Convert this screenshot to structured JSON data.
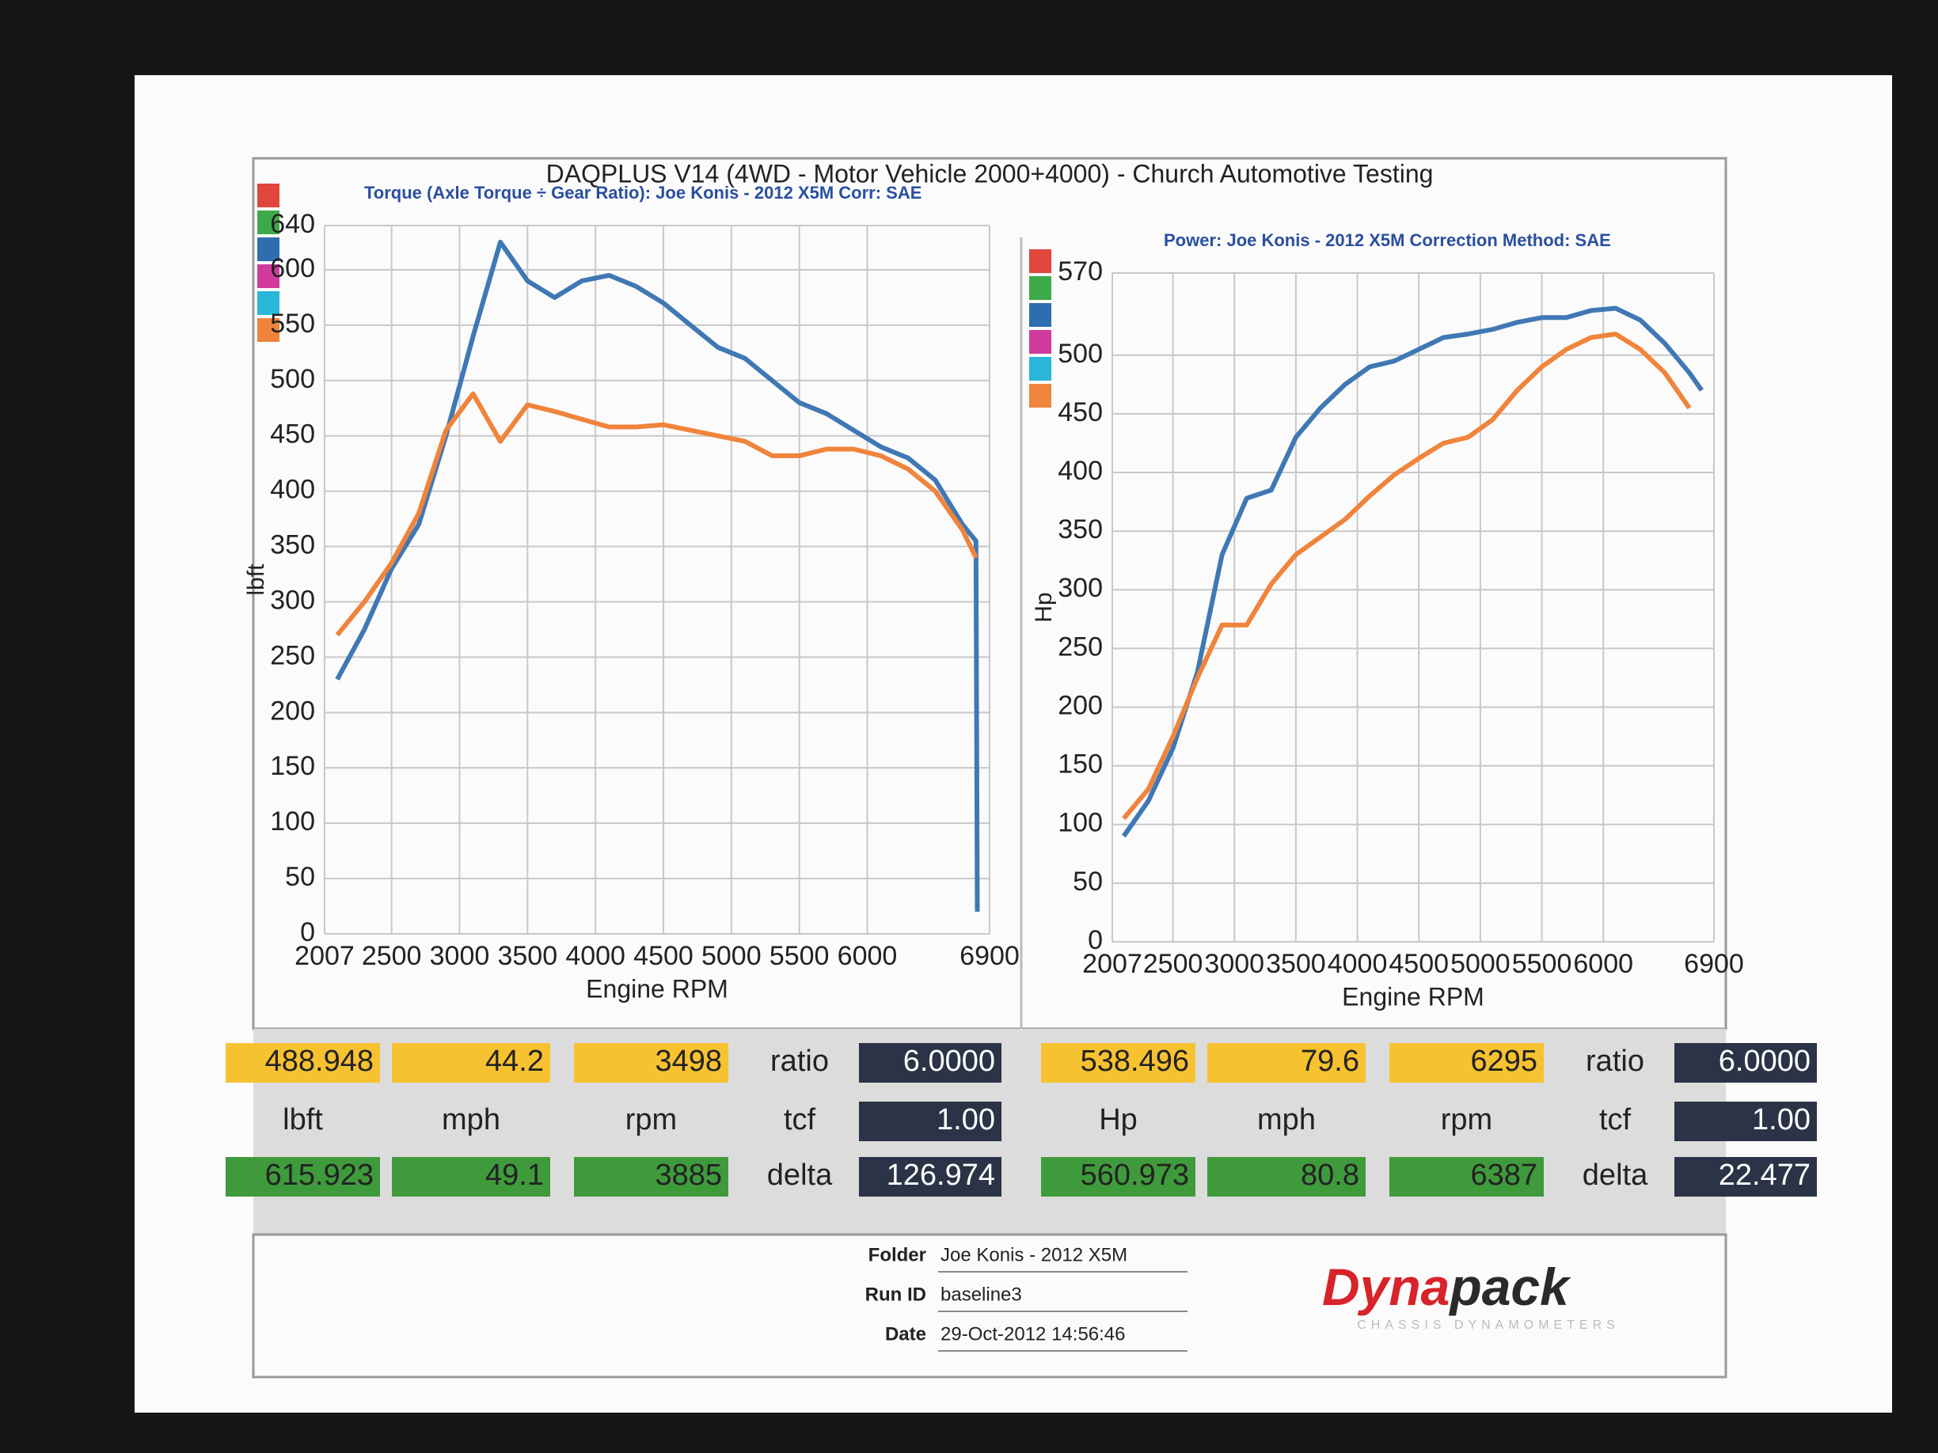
{
  "title": "DAQPLUS V14 (4WD - Motor Vehicle 2000+4000) - Church Automotive Testing",
  "chart_data": [
    {
      "type": "line",
      "subtitle": "Torque (Axle Torque ÷ Gear Ratio): Joe Konis - 2012 X5M     Corr: SAE",
      "x_label": "Engine RPM",
      "y_label": "lbft",
      "x": [
        2100,
        2300,
        2500,
        2700,
        2900,
        3100,
        3300,
        3500,
        3700,
        3900,
        4100,
        4300,
        4500,
        4700,
        4900,
        5100,
        5300,
        5500,
        5700,
        5900,
        6100,
        6300,
        6500,
        6700,
        6800,
        6810
      ],
      "series": [
        {
          "color": "#3f78b4",
          "values": [
            230,
            275,
            330,
            370,
            450,
            540,
            625,
            590,
            575,
            590,
            595,
            585,
            570,
            550,
            530,
            520,
            500,
            480,
            470,
            455,
            440,
            430,
            410,
            370,
            355,
            20
          ]
        },
        {
          "color": "#f0843c",
          "values": [
            270,
            300,
            335,
            380,
            455,
            488,
            445,
            478,
            472,
            465,
            458,
            458,
            460,
            455,
            450,
            445,
            432,
            432,
            438,
            438,
            432,
            420,
            400,
            365,
            340,
            null
          ]
        }
      ],
      "xlim": [
        2007,
        6900
      ],
      "xticks": [
        2007,
        2500,
        3000,
        3500,
        4000,
        4500,
        5000,
        5500,
        6000,
        6900
      ],
      "ylim": [
        0,
        640
      ],
      "yticks": [
        0,
        50,
        100,
        150,
        200,
        250,
        300,
        350,
        400,
        450,
        500,
        550,
        600,
        640
      ],
      "grid": true
    },
    {
      "type": "line",
      "subtitle": "Power: Joe Konis - 2012 X5M     Correction Method: SAE",
      "x_label": "Engine RPM",
      "y_label": "Hp",
      "x": [
        2100,
        2300,
        2500,
        2700,
        2900,
        3100,
        3300,
        3500,
        3700,
        3900,
        4100,
        4300,
        4500,
        4700,
        4900,
        5100,
        5300,
        5500,
        5700,
        5900,
        6100,
        6300,
        6500,
        6700,
        6800
      ],
      "series": [
        {
          "color": "#3f78b4",
          "values": [
            90,
            120,
            165,
            230,
            330,
            378,
            385,
            430,
            455,
            475,
            490,
            495,
            505,
            515,
            518,
            522,
            528,
            532,
            532,
            538,
            540,
            530,
            510,
            485,
            470
          ]
        },
        {
          "color": "#f0843c",
          "values": [
            105,
            130,
            175,
            225,
            270,
            270,
            305,
            330,
            345,
            360,
            380,
            398,
            412,
            425,
            430,
            445,
            470,
            490,
            505,
            515,
            518,
            505,
            485,
            455,
            null
          ]
        }
      ],
      "xlim": [
        2007,
        6900
      ],
      "xticks": [
        2007,
        2500,
        3000,
        3500,
        4000,
        4500,
        5000,
        5500,
        6000,
        6900
      ],
      "ylim": [
        0,
        570
      ],
      "yticks": [
        0,
        50,
        100,
        150,
        200,
        250,
        300,
        350,
        400,
        450,
        500,
        570
      ],
      "grid": true
    }
  ],
  "readouts": [
    [
      [
        "488.948",
        "44.2",
        "3498",
        "ratio",
        "6.0000"
      ],
      [
        "lbft",
        "mph",
        "rpm",
        "tcf",
        "1.00"
      ],
      [
        "615.923",
        "49.1",
        "3885",
        "delta",
        "126.974"
      ]
    ],
    [
      [
        "538.496",
        "79.6",
        "6295",
        "ratio",
        "6.0000"
      ],
      [
        "Hp",
        "mph",
        "rpm",
        "tcf",
        "1.00"
      ],
      [
        "560.973",
        "80.8",
        "6387",
        "delta",
        "22.477"
      ]
    ]
  ],
  "footer": {
    "labels": [
      "Folder",
      "Run ID",
      "Date"
    ],
    "values": [
      "Joe Konis - 2012 X5M",
      "baseline3",
      "29-Oct-2012 14:56:46"
    ],
    "logo": [
      "Dyna",
      "pack"
    ],
    "tagline": "CHASSIS DYNAMOMETERS"
  }
}
